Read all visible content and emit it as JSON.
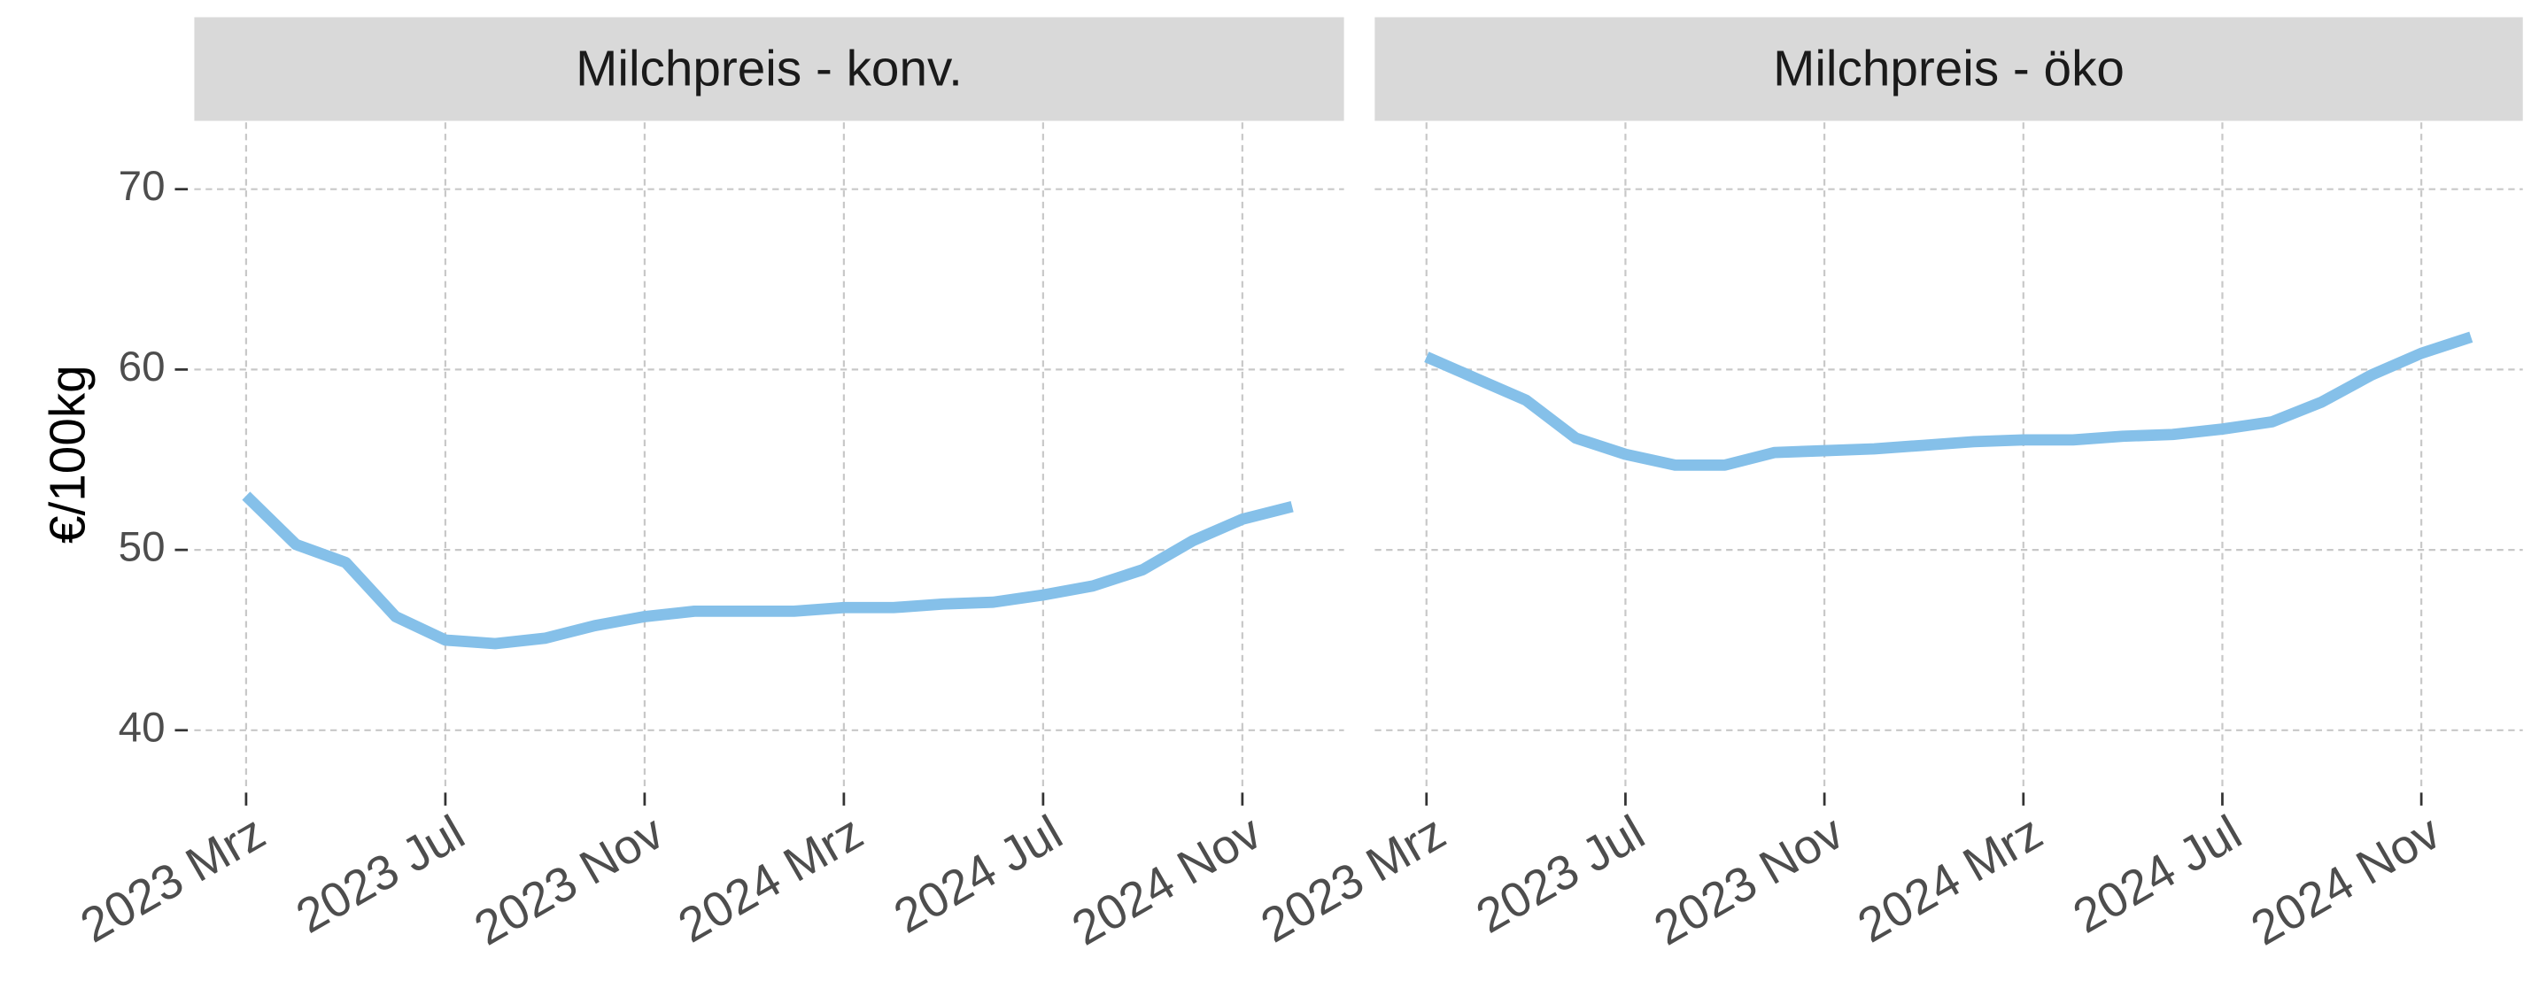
{
  "chart_data": [
    {
      "type": "line",
      "title": "Milchpreis - konv.",
      "y_label": "€/100kg",
      "x": [
        "2023-03",
        "2023-04",
        "2023-05",
        "2023-06",
        "2023-07",
        "2023-08",
        "2023-09",
        "2023-10",
        "2023-11",
        "2023-12",
        "2024-01",
        "2024-02",
        "2024-03",
        "2024-04",
        "2024-05",
        "2024-06",
        "2024-07",
        "2024-08",
        "2024-09",
        "2024-10",
        "2024-11",
        "2024-12"
      ],
      "series": [
        {
          "name": "Milchpreis - konv.",
          "color": "#85C0E9",
          "values": [
            53.0,
            50.3,
            49.3,
            46.3,
            45.0,
            44.8,
            45.1,
            45.8,
            46.3,
            46.6,
            46.6,
            46.6,
            46.8,
            46.8,
            47.0,
            47.1,
            47.5,
            48.0,
            48.9,
            50.5,
            51.7,
            52.4
          ]
        }
      ],
      "ylim": [
        36.9,
        73.7
      ],
      "yticks": [
        40,
        50,
        60,
        70
      ],
      "xticks": [
        {
          "value": "2023-03",
          "label": "2023 Mrz"
        },
        {
          "value": "2023-07",
          "label": "2023 Jul"
        },
        {
          "value": "2023-11",
          "label": "2023 Nov"
        },
        {
          "value": "2024-03",
          "label": "2024 Mrz"
        },
        {
          "value": "2024-07",
          "label": "2024 Jul"
        },
        {
          "value": "2024-11",
          "label": "2024 Nov"
        }
      ],
      "grid": true
    },
    {
      "type": "line",
      "title": "Milchpreis - öko",
      "x": [
        "2023-03",
        "2023-04",
        "2023-05",
        "2023-06",
        "2023-07",
        "2023-08",
        "2023-09",
        "2023-10",
        "2023-11",
        "2023-12",
        "2024-01",
        "2024-02",
        "2024-03",
        "2024-04",
        "2024-05",
        "2024-06",
        "2024-07",
        "2024-08",
        "2024-09",
        "2024-10",
        "2024-11",
        "2024-12"
      ],
      "series": [
        {
          "name": "Milchpreis - öko",
          "color": "#85C0E9",
          "values": [
            60.7,
            59.5,
            58.3,
            56.2,
            55.3,
            54.7,
            54.7,
            55.4,
            55.5,
            55.6,
            55.8,
            56.0,
            56.1,
            56.1,
            56.3,
            56.4,
            56.7,
            57.1,
            58.2,
            59.7,
            60.9,
            61.8
          ]
        }
      ],
      "ylim": [
        36.9,
        73.7
      ],
      "yticks": [
        40,
        50,
        60,
        70
      ],
      "xticks": [
        {
          "value": "2023-03",
          "label": "2023 Mrz"
        },
        {
          "value": "2023-07",
          "label": "2023 Jul"
        },
        {
          "value": "2023-11",
          "label": "2023 Nov"
        },
        {
          "value": "2024-03",
          "label": "2024 Mrz"
        },
        {
          "value": "2024-07",
          "label": "2024 Jul"
        },
        {
          "value": "2024-11",
          "label": "2024 Nov"
        }
      ],
      "grid": true
    }
  ]
}
